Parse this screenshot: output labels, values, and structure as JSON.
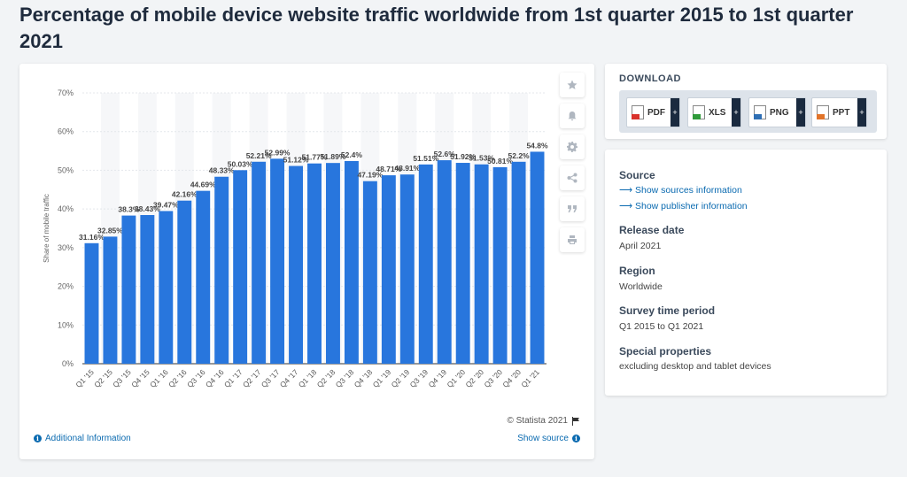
{
  "title": "Percentage of mobile device website traffic worldwide from 1st quarter 2015 to 1st quarter 2021",
  "colors": {
    "bar": "#2876dd",
    "accent": "#0a6ab0",
    "dark": "#1a2a3f"
  },
  "toolbar": {
    "icons": [
      "star-icon",
      "bell-icon",
      "gear-icon",
      "share-icon",
      "quote-icon",
      "print-icon"
    ]
  },
  "chart_data": {
    "type": "bar",
    "title": "",
    "xlabel": "",
    "ylabel": "Share of mobile traffic",
    "ylim": [
      0,
      70
    ],
    "yticks": [
      "0%",
      "10%",
      "20%",
      "30%",
      "40%",
      "50%",
      "60%",
      "70%"
    ],
    "grid": true,
    "categories": [
      "Q1 '15",
      "Q2 '15",
      "Q3 '15",
      "Q4 '15",
      "Q1 '16",
      "Q2 '16",
      "Q3 '16",
      "Q4 '16",
      "Q1 '17",
      "Q2 '17",
      "Q3 '17",
      "Q4 '17",
      "Q1 '18",
      "Q2 '18",
      "Q3 '18",
      "Q4 '18",
      "Q1 '19",
      "Q2 '19",
      "Q3 '19",
      "Q4 '19",
      "Q1 '20",
      "Q2 '20",
      "Q3 '20",
      "Q4 '20",
      "Q1 '21"
    ],
    "values": [
      31.16,
      32.85,
      38.3,
      38.43,
      39.47,
      42.16,
      44.69,
      48.33,
      50.03,
      52.21,
      52.99,
      51.12,
      51.77,
      51.89,
      52.4,
      47.19,
      48.71,
      48.91,
      51.51,
      52.6,
      51.92,
      51.53,
      50.81,
      52.2,
      54.8
    ],
    "labels": [
      "31.16%",
      "32.85%",
      "38.3%",
      "38.43%",
      "39.47%",
      "42.16%",
      "44.69%",
      "48.33%",
      "50.03%",
      "52.21%",
      "52.99%",
      "51.12%",
      "51.77%",
      "51.89%",
      "52.4%",
      "47.19%",
      "48.71%",
      "48.91%",
      "51.51%",
      "52.6%",
      "51.92%",
      "51.53%",
      "50.81%",
      "52.2%",
      "54.8%"
    ]
  },
  "credit": "© Statista 2021",
  "links": {
    "additional_info": "Additional Information",
    "show_source": "Show source"
  },
  "download": {
    "title": "DOWNLOAD",
    "buttons": [
      {
        "label": "PDF",
        "color": "#d9322b"
      },
      {
        "label": "XLS",
        "color": "#2f9a3a"
      },
      {
        "label": "PNG",
        "color": "#2f6fb4"
      },
      {
        "label": "PPT",
        "color": "#e2742a"
      }
    ]
  },
  "meta": {
    "source_heading": "Source",
    "source_link": "Show sources information",
    "publisher_link": "Show publisher information",
    "release_heading": "Release date",
    "release_value": "April 2021",
    "region_heading": "Region",
    "region_value": "Worldwide",
    "period_heading": "Survey time period",
    "period_value": "Q1 2015 to Q1 2021",
    "special_heading": "Special properties",
    "special_value": "excluding desktop and tablet devices"
  }
}
